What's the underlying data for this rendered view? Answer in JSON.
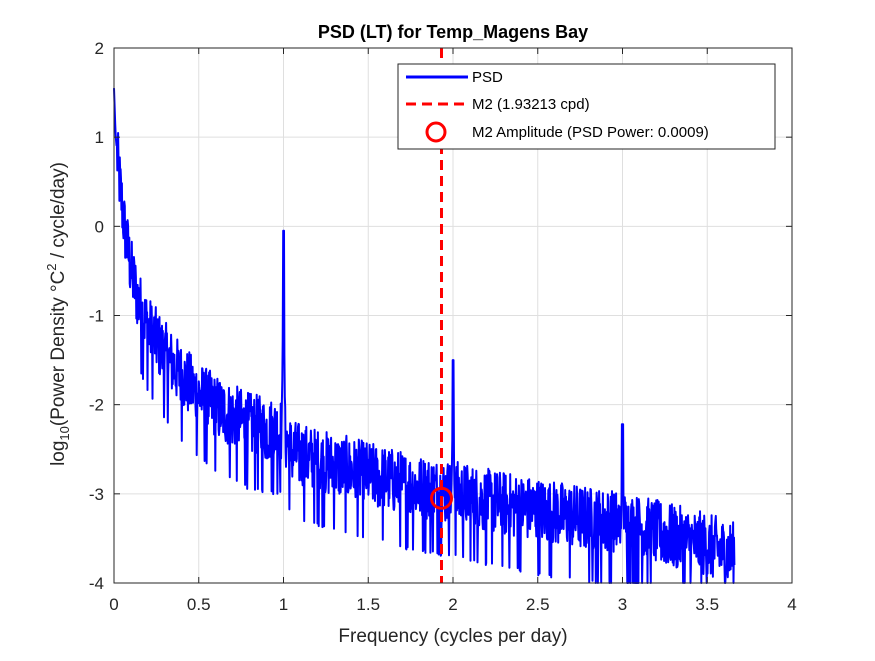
{
  "chart_data": {
    "type": "line",
    "title": "PSD (LT) for Temp_Magens Bay",
    "xlabel": "Frequency (cycles per day)",
    "ylabel": {
      "prefix": "log",
      "sub": "10",
      "mid": "(Power Density °C",
      "sup": "2",
      "suffix": " / cycle/day)"
    },
    "xlim": [
      0,
      4
    ],
    "ylim": [
      -4,
      2
    ],
    "xticks": [
      0,
      0.5,
      1,
      1.5,
      2,
      2.5,
      3,
      3.5,
      4
    ],
    "xtick_labels": [
      "0",
      "0.5",
      "1",
      "1.5",
      "2",
      "2.5",
      "3",
      "3.5",
      "4"
    ],
    "yticks": [
      -4,
      -3,
      -2,
      -1,
      0,
      1,
      2
    ],
    "ytick_labels": [
      "-4",
      "-3",
      "-2",
      "-1",
      "0",
      "1",
      "2"
    ],
    "grid": true,
    "legend_position": "top-right",
    "series": [
      {
        "name": "PSD",
        "color": "#0000ff",
        "style": "solid",
        "x_max": 3.66,
        "trend": [
          [
            0.0,
            1.55
          ],
          [
            0.01,
            1.0
          ],
          [
            0.03,
            0.6
          ],
          [
            0.06,
            0.05
          ],
          [
            0.1,
            -0.45
          ],
          [
            0.15,
            -0.85
          ],
          [
            0.2,
            -1.1
          ],
          [
            0.3,
            -1.4
          ],
          [
            0.4,
            -1.65
          ],
          [
            0.5,
            -1.85
          ],
          [
            0.6,
            -2.0
          ],
          [
            0.7,
            -2.1
          ],
          [
            0.8,
            -2.2
          ],
          [
            0.9,
            -2.25
          ],
          [
            0.99,
            -2.25
          ],
          [
            1.05,
            -2.5
          ],
          [
            1.2,
            -2.6
          ],
          [
            1.4,
            -2.7
          ],
          [
            1.6,
            -2.8
          ],
          [
            1.8,
            -2.9
          ],
          [
            2.0,
            -2.95
          ],
          [
            2.2,
            -3.05
          ],
          [
            2.5,
            -3.15
          ],
          [
            2.8,
            -3.25
          ],
          [
            3.0,
            -3.3
          ],
          [
            3.3,
            -3.45
          ],
          [
            3.5,
            -3.55
          ],
          [
            3.66,
            -3.65
          ]
        ],
        "peaks": [
          {
            "x": 1.0,
            "y": -0.05
          },
          {
            "x": 2.0,
            "y": -1.5
          },
          {
            "x": 3.0,
            "y": -2.22
          }
        ]
      }
    ],
    "reference_line": {
      "name": "M2 (1.93213 cpd)",
      "x": 1.93213,
      "color": "#ff0000",
      "style": "dashed"
    },
    "marker": {
      "name": "M2 Amplitude (PSD Power: 0.0009)",
      "x": 1.93213,
      "y": -3.05,
      "color": "#ff0000",
      "shape": "circle"
    }
  }
}
